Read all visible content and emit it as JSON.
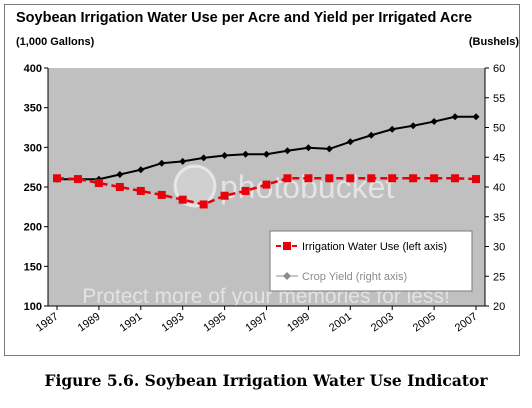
{
  "caption": "Figure 5.6. Soybean Irrigation Water Use Indicator",
  "watermark": {
    "logo": "photobucket",
    "text": "Protect more of your memories for less!"
  },
  "colors": {
    "plot_bg": "#c0c0c0",
    "water_use": "#e8000b",
    "crop_yield": "#000000",
    "crop_yield_legend": "#8c8c8c"
  },
  "chart_data": {
    "type": "line",
    "title": "Soybean Irrigation Water Use per Acre and Yield per Irrigated Acre",
    "ylabel": "(1,000 Gallons)",
    "y2label": "(Bushels)",
    "x": [
      1987,
      1988,
      1989,
      1990,
      1991,
      1992,
      1993,
      1994,
      1995,
      1996,
      1997,
      1998,
      1999,
      2000,
      2001,
      2002,
      2003,
      2004,
      2005,
      2006,
      2007
    ],
    "x_tick_labels": [
      "1987",
      "1989",
      "1991",
      "1993",
      "1995",
      "1997",
      "1999",
      "2001",
      "2003",
      "2005",
      "2007"
    ],
    "ylim": [
      100,
      400
    ],
    "y_ticks": [
      "100",
      "150",
      "200",
      "250",
      "300",
      "350",
      "400"
    ],
    "y2lim": [
      20,
      60
    ],
    "y2_ticks": [
      "20",
      "25",
      "30",
      "35",
      "40",
      "45",
      "50",
      "55",
      "60"
    ],
    "grid": false,
    "legend_position": "bottom-right",
    "series": [
      {
        "name": "Irrigation Water Use  (left axis)",
        "axis": "left",
        "style": "dashed",
        "marker": "square",
        "values": [
          261,
          260,
          255,
          250,
          245,
          240,
          234,
          228,
          239,
          245,
          253,
          261,
          261,
          261,
          261,
          261,
          261,
          261,
          261,
          261,
          260
        ]
      },
      {
        "name": "Crop Yield (right axis)",
        "axis": "right",
        "style": "solid",
        "marker": "diamond",
        "values": [
          41.3,
          41.3,
          41.3,
          42.1,
          42.9,
          44.0,
          44.3,
          44.9,
          45.3,
          45.5,
          45.5,
          46.1,
          46.6,
          46.4,
          47.6,
          48.7,
          49.7,
          50.3,
          51.0,
          51.8,
          51.8
        ]
      }
    ]
  }
}
